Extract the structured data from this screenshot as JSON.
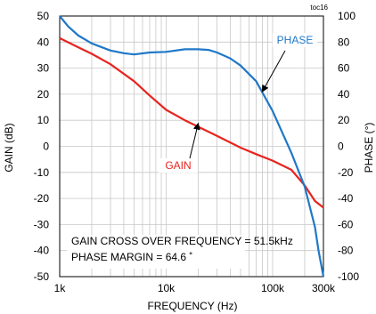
{
  "chart_data": {
    "type": "line",
    "figure_tag": "toc16",
    "xlabel": "FREQUENCY (Hz)",
    "ylabel_left": "GAIN (dB)",
    "ylabel_right": "PHASE (°)",
    "x_scale": "log",
    "xlim": [
      1000,
      300000
    ],
    "ylim_left": [
      -50,
      50
    ],
    "ylim_right": [
      -100,
      100
    ],
    "x_ticks": [
      {
        "value": 1000,
        "label": "1k"
      },
      {
        "value": 10000,
        "label": "10k"
      },
      {
        "value": 100000,
        "label": "100k"
      },
      {
        "value": 300000,
        "label": "300k"
      }
    ],
    "y_ticks_left": [
      {
        "value": 50,
        "label": "50"
      },
      {
        "value": 40,
        "label": "40"
      },
      {
        "value": 30,
        "label": "30"
      },
      {
        "value": 20,
        "label": "20"
      },
      {
        "value": 10,
        "label": "10"
      },
      {
        "value": 0,
        "label": "0"
      },
      {
        "value": -10,
        "label": "-10"
      },
      {
        "value": -20,
        "label": "-20"
      },
      {
        "value": -30,
        "label": "-30"
      },
      {
        "value": -40,
        "label": "-40"
      },
      {
        "value": -50,
        "label": "-50"
      }
    ],
    "y_ticks_right": [
      {
        "value": 100,
        "label": "100"
      },
      {
        "value": 80,
        "label": "80"
      },
      {
        "value": 60,
        "label": "60"
      },
      {
        "value": 40,
        "label": "40"
      },
      {
        "value": 20,
        "label": "20"
      },
      {
        "value": 0,
        "label": "0"
      },
      {
        "value": -20,
        "label": "-20"
      },
      {
        "value": -40,
        "label": "-40"
      },
      {
        "value": -60,
        "label": "-60"
      },
      {
        "value": -80,
        "label": "-80"
      },
      {
        "value": -100,
        "label": "-100"
      }
    ],
    "grid": true,
    "series": [
      {
        "name": "GAIN",
        "axis": "left",
        "color": "#e8241f",
        "x": [
          1000,
          1500,
          2000,
          3000,
          5000,
          7000,
          10000,
          15000,
          20000,
          30000,
          50000,
          70000,
          100000,
          150000,
          200000,
          250000,
          300000
        ],
        "y": [
          41.5,
          38,
          35.5,
          31.5,
          25,
          19.5,
          14,
          10,
          7.5,
          4,
          -0.5,
          -3,
          -5.5,
          -9,
          -15,
          -21,
          -23.5
        ]
      },
      {
        "name": "PHASE",
        "axis": "right",
        "color": "#1f78c8",
        "x": [
          1000,
          1200,
          1500,
          2000,
          3000,
          4000,
          5000,
          7000,
          10000,
          15000,
          20000,
          25000,
          30000,
          40000,
          50000,
          70000,
          100000,
          150000,
          200000,
          250000,
          270000,
          300000
        ],
        "y": [
          100,
          92,
          85,
          79,
          73.5,
          71.5,
          70.5,
          72,
          72.5,
          74.5,
          74.5,
          74,
          72,
          67.5,
          62,
          50,
          27,
          -5,
          -31,
          -62,
          -80,
          -100
        ]
      }
    ],
    "annotations": [
      {
        "text": "GAIN CROSS OVER FREQUENCY = 51.5kHz"
      },
      {
        "text": "PHASE MARGIN = 64.6 ˚"
      }
    ]
  }
}
